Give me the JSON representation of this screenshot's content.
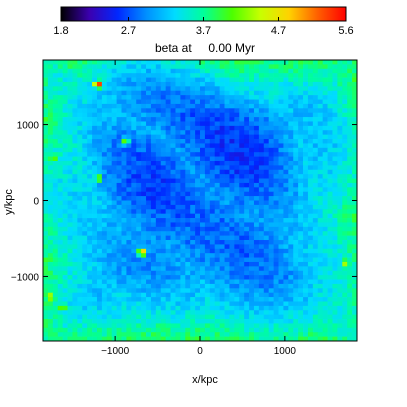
{
  "chart_data": {
    "type": "heatmap",
    "title": "beta at     0.00 Myr",
    "xlabel": "x/kpc",
    "ylabel": "y/kpc",
    "xlim": [
      -1850,
      1850
    ],
    "ylim": [
      -1850,
      1850
    ],
    "x_ticks": [
      -1000,
      0,
      1000
    ],
    "y_ticks": [
      -1000,
      0,
      1000
    ],
    "x_tick_labels": [
      "−1000",
      "0",
      "1000"
    ],
    "y_tick_labels": [
      "−1000",
      "0",
      "1000"
    ],
    "colorbar": {
      "min": 1.8,
      "max": 5.6,
      "ticks": [
        1.8,
        2.7,
        3.7,
        4.7,
        5.6
      ],
      "tick_labels": [
        "1.8",
        "2.7",
        "3.7",
        "4.7",
        "5.6"
      ],
      "placement": "top",
      "colormap": "rainbow"
    },
    "colormap_stops": [
      "#000000",
      "#3b00b0",
      "#0028ff",
      "#0090ff",
      "#00dcff",
      "#00ff9a",
      "#4cff00",
      "#c8ff00",
      "#ffd200",
      "#ff6000",
      "#ff0000"
    ],
    "field": {
      "description_units": "beta",
      "typical_range": [
        2.2,
        3.6
      ],
      "structure": "turbulent filamentary field: dark-blue low-beta cells in the interior, cyan/green higher-beta at the edges, isolated red/orange peaks (about 5.5)",
      "peaks": [
        {
          "x": -1200,
          "y": 1530,
          "value": 5.5
        },
        {
          "x": -680,
          "y": -680,
          "value": 5.0
        },
        {
          "x": -1780,
          "y": -1270,
          "value": 4.8
        },
        {
          "x": -1730,
          "y": 570,
          "value": 4.5
        },
        {
          "x": 1720,
          "y": -820,
          "value": 4.6
        },
        {
          "x": -1200,
          "y": 290,
          "value": 4.4
        },
        {
          "x": -880,
          "y": 780,
          "value": 4.2
        },
        {
          "x": -1620,
          "y": -1420,
          "value": 4.4
        }
      ]
    }
  }
}
